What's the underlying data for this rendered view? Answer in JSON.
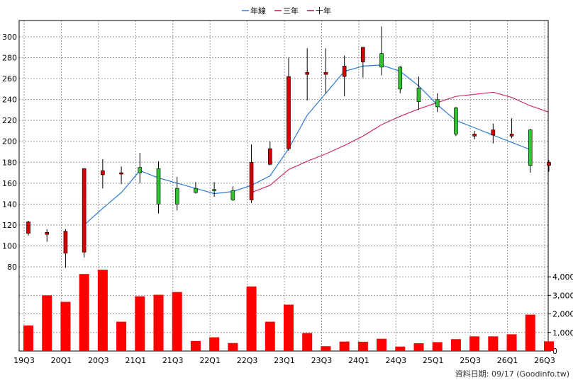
{
  "chart_data": {
    "type": "candlestick+bar",
    "legend": {
      "placement": "top-center",
      "items": [
        {
          "label": "年線",
          "color": "#1f6fd6"
        },
        {
          "label": "三年",
          "color": "#d8154a"
        },
        {
          "label": "十年",
          "color": "#9c1a5a"
        }
      ]
    },
    "x_tick_labels": [
      "19Q3",
      "20Q1",
      "20Q3",
      "21Q1",
      "21Q3",
      "22Q1",
      "22Q3",
      "23Q1",
      "23Q3",
      "24Q1",
      "24Q3",
      "25Q1",
      "25Q3",
      "26Q1",
      "26Q3"
    ],
    "price_axis": {
      "ylim": [
        80,
        310
      ],
      "ticks": [
        80,
        100,
        120,
        140,
        160,
        180,
        200,
        220,
        240,
        260,
        280,
        300
      ],
      "position": "left"
    },
    "volume_axis": {
      "ylim": [
        0,
        4500
      ],
      "ticks": [
        "0",
        "1,000",
        "2,000",
        "3,000",
        "4,000"
      ],
      "tick_values": [
        0,
        1000,
        2000,
        3000,
        4000
      ],
      "position": "right"
    },
    "candles": [
      {
        "open": 112,
        "close": 123,
        "high": 124,
        "low": 110
      },
      {
        "open": 111,
        "close": 113,
        "high": 116,
        "low": 104
      },
      {
        "open": 93,
        "close": 114,
        "high": 116,
        "low": 79
      },
      {
        "open": 94,
        "close": 174,
        "high": 174,
        "low": 89
      },
      {
        "open": 168,
        "close": 172,
        "high": 183,
        "low": 155
      },
      {
        "open": 169,
        "close": 170,
        "high": 176,
        "low": 159
      },
      {
        "open": 175,
        "close": 170,
        "high": 189,
        "low": 160
      },
      {
        "open": 174,
        "close": 140,
        "high": 181,
        "low": 131
      },
      {
        "open": 155,
        "close": 140,
        "high": 166,
        "low": 134
      },
      {
        "open": 155,
        "close": 151,
        "high": 161,
        "low": 150
      },
      {
        "open": 154,
        "close": 153,
        "high": 161,
        "low": 147
      },
      {
        "open": 153,
        "close": 144,
        "high": 157,
        "low": 143
      },
      {
        "open": 144,
        "close": 180,
        "high": 197,
        "low": 141
      },
      {
        "open": 178,
        "close": 193,
        "high": 200,
        "low": 177
      },
      {
        "open": 193,
        "close": 262,
        "high": 280,
        "low": 191
      },
      {
        "open": 264,
        "close": 266,
        "high": 289,
        "low": 239
      },
      {
        "open": 264,
        "close": 266,
        "high": 289,
        "low": 246
      },
      {
        "open": 262,
        "close": 272,
        "high": 282,
        "low": 243
      },
      {
        "open": 276,
        "close": 290,
        "high": 290,
        "low": 261
      },
      {
        "open": 284,
        "close": 271,
        "high": 310,
        "low": 263
      },
      {
        "open": 271,
        "close": 250,
        "high": 272,
        "low": 246
      },
      {
        "open": 251,
        "close": 238,
        "high": 262,
        "low": 230
      },
      {
        "open": 240,
        "close": 233,
        "high": 246,
        "low": 228
      },
      {
        "open": 232,
        "close": 207,
        "high": 233,
        "low": 205
      },
      {
        "open": 205,
        "close": 207,
        "high": 210,
        "low": 202
      },
      {
        "open": 206,
        "close": 211,
        "high": 217,
        "low": 198
      },
      {
        "open": 205,
        "close": 207,
        "high": 222,
        "low": 203
      },
      {
        "open": 211,
        "close": 177,
        "high": 212,
        "low": 170
      },
      {
        "open": 177,
        "close": 180,
        "high": 182,
        "low": 171
      }
    ],
    "up_color": "#d40000",
    "down_color": "#2fc42f",
    "annual_line": {
      "label": "年線",
      "color": "#2a7ad6",
      "values": [
        null,
        null,
        null,
        120,
        136,
        151,
        172,
        165,
        160,
        155,
        150,
        152,
        158,
        167,
        193,
        225,
        246,
        267,
        272,
        273,
        267,
        253,
        235,
        220,
        213,
        206,
        199,
        192,
        null
      ]
    },
    "three_year_line": {
      "label": "三年",
      "color": "#cc2a6e",
      "values": [
        null,
        null,
        null,
        null,
        null,
        null,
        null,
        null,
        null,
        null,
        null,
        null,
        151,
        158,
        173,
        181,
        188,
        196,
        205,
        216,
        224,
        231,
        237,
        243,
        245,
        247,
        242,
        234,
        228
      ]
    },
    "volume": {
      "color": "#ff0000",
      "values": [
        1380,
        3000,
        2650,
        4150,
        4380,
        1580,
        2950,
        3030,
        3180,
        540,
        740,
        430,
        3480,
        1580,
        2500,
        970,
        260,
        510,
        500,
        660,
        240,
        420,
        480,
        640,
        790,
        790,
        900,
        1960,
        520
      ]
    },
    "footer": "資料日期: 09/17  (Goodinfo.tw)"
  }
}
